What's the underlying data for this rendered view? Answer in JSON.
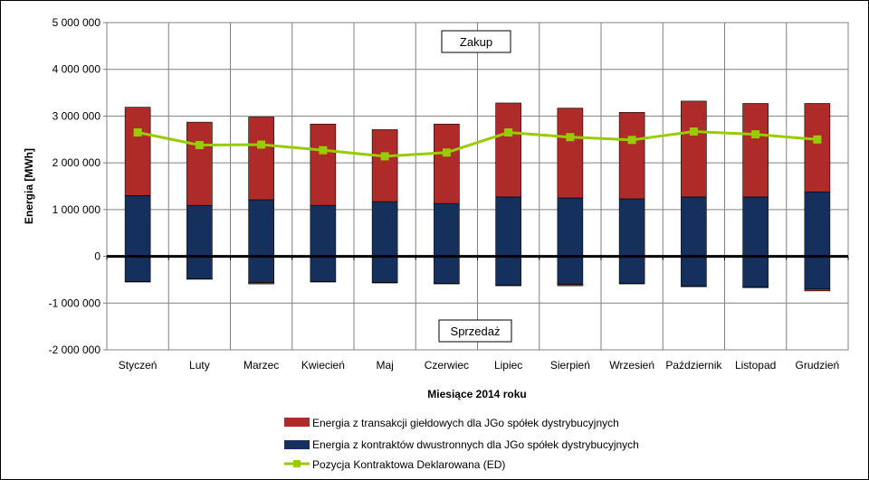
{
  "chart_data": {
    "type": "bar",
    "title": "",
    "xlabel": "Miesiące 2014 roku",
    "ylabel": "Energia [MWh]",
    "ylim": [
      -2000000,
      5000000
    ],
    "yticks": [
      5000000,
      4000000,
      3000000,
      2000000,
      1000000,
      0,
      -1000000,
      -2000000
    ],
    "ytick_labels": [
      "5 000 000",
      "4 000 000",
      "3 000 000",
      "2 000 000",
      "1 000 000",
      "0",
      "-1 000 000",
      "-2 000 000"
    ],
    "categories": [
      "Styczeń",
      "Luty",
      "Marzec",
      "Kwiecień",
      "Maj",
      "Czerwiec",
      "Lipiec",
      "Sierpień",
      "Wrzesień",
      "Październik",
      "Listopad",
      "Grudzień"
    ],
    "grid": true,
    "legend_position": "bottom",
    "series": [
      {
        "name": "Energia z kontraktów dwustronnych dla JGo spółek dystrybucyjnych",
        "type": "bar",
        "color": "#16305e",
        "values_positive": [
          1300000,
          1090000,
          1210000,
          1090000,
          1170000,
          1130000,
          1270000,
          1250000,
          1230000,
          1270000,
          1270000,
          1380000
        ],
        "values_negative": [
          -540000,
          -480000,
          -560000,
          -540000,
          -560000,
          -580000,
          -620000,
          -600000,
          -580000,
          -640000,
          -660000,
          -700000
        ]
      },
      {
        "name": "Energia z transakcji giełdowych dla JGo spółek dystrybucyjnych",
        "type": "bar",
        "color": "#ae2b29",
        "values_positive": [
          1890000,
          1780000,
          1770000,
          1740000,
          1540000,
          1700000,
          2010000,
          1920000,
          1850000,
          2050000,
          2000000,
          1890000
        ],
        "values_negative": [
          -10000,
          -10000,
          -30000,
          -10000,
          -10000,
          -10000,
          -10000,
          -30000,
          -10000,
          -10000,
          -10000,
          -40000
        ]
      },
      {
        "name": "Pozycja Kontraktowa Deklarowana (ED)",
        "type": "line",
        "color": "#99cc00",
        "values": [
          2650000,
          2380000,
          2390000,
          2270000,
          2140000,
          2220000,
          2650000,
          2550000,
          2490000,
          2670000,
          2610000,
          2500000
        ]
      }
    ],
    "annotations": [
      "Zakup",
      "Sprzedaż"
    ]
  }
}
